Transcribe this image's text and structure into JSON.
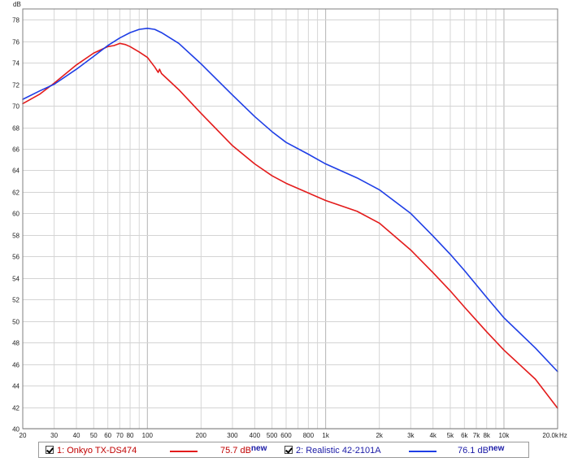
{
  "chart_data": {
    "type": "line",
    "x_scale": "log",
    "xlim": [
      20,
      20000
    ],
    "ylim": [
      40,
      79
    ],
    "yunit": "dB",
    "xunit": "Hz",
    "grid": true,
    "y_ticks": [
      40,
      42,
      44,
      46,
      48,
      50,
      52,
      54,
      56,
      58,
      60,
      62,
      64,
      66,
      68,
      70,
      72,
      74,
      76,
      78
    ],
    "x_ticks": [
      {
        "value": 20,
        "label": "20"
      },
      {
        "value": 30,
        "label": "30"
      },
      {
        "value": 40,
        "label": "40"
      },
      {
        "value": 50,
        "label": "50"
      },
      {
        "value": 60,
        "label": "60"
      },
      {
        "value": 70,
        "label": "70"
      },
      {
        "value": 80,
        "label": "80"
      },
      {
        "value": 100,
        "label": "100"
      },
      {
        "value": 200,
        "label": "200"
      },
      {
        "value": 300,
        "label": "300"
      },
      {
        "value": 400,
        "label": "400"
      },
      {
        "value": 500,
        "label": "500"
      },
      {
        "value": 600,
        "label": "600"
      },
      {
        "value": 800,
        "label": "800"
      },
      {
        "value": 1000,
        "label": "1k"
      },
      {
        "value": 2000,
        "label": "2k"
      },
      {
        "value": 3000,
        "label": "3k"
      },
      {
        "value": 4000,
        "label": "4k"
      },
      {
        "value": 5000,
        "label": "5k"
      },
      {
        "value": 6000,
        "label": "6k"
      },
      {
        "value": 7000,
        "label": "7k"
      },
      {
        "value": 8000,
        "label": "8k"
      },
      {
        "value": 10000,
        "label": "10k"
      },
      {
        "value": 20000,
        "label": "20.0k"
      }
    ],
    "series": [
      {
        "name": "1: Onkyo TX-DS474",
        "color": "#e31b1b",
        "legend_value": "75.7 dB",
        "legend_tag": "new",
        "x": [
          20,
          25,
          30,
          40,
          50,
          60,
          65,
          70,
          75,
          80,
          90,
          100,
          110,
          115,
          117,
          120,
          150,
          200,
          300,
          400,
          500,
          600,
          800,
          1000,
          1500,
          2000,
          3000,
          4000,
          5000,
          6000,
          8000,
          10000,
          15000,
          20000
        ],
        "y": [
          70.2,
          71.1,
          72.1,
          73.8,
          74.9,
          75.5,
          75.6,
          75.8,
          75.7,
          75.5,
          75.0,
          74.5,
          73.6,
          73.1,
          73.4,
          73.0,
          71.5,
          69.3,
          66.3,
          64.6,
          63.5,
          62.8,
          61.9,
          61.2,
          60.2,
          59.1,
          56.6,
          54.5,
          52.8,
          51.3,
          49.0,
          47.3,
          44.6,
          41.9
        ]
      },
      {
        "name": "2: Realistic 42-2101A",
        "color": "#1e3ee6",
        "legend_value": "76.1 dB",
        "legend_tag": "new",
        "x": [
          20,
          25,
          30,
          40,
          50,
          60,
          70,
          80,
          90,
          100,
          110,
          120,
          150,
          200,
          300,
          400,
          500,
          600,
          800,
          1000,
          1500,
          2000,
          3000,
          4000,
          5000,
          6000,
          8000,
          10000,
          15000,
          20000
        ],
        "y": [
          70.6,
          71.4,
          72.0,
          73.4,
          74.6,
          75.6,
          76.3,
          76.8,
          77.1,
          77.2,
          77.1,
          76.8,
          75.8,
          73.9,
          71.0,
          69.0,
          67.6,
          66.6,
          65.5,
          64.6,
          63.3,
          62.2,
          60.0,
          57.9,
          56.2,
          54.7,
          52.2,
          50.3,
          47.5,
          45.3
        ]
      }
    ]
  }
}
